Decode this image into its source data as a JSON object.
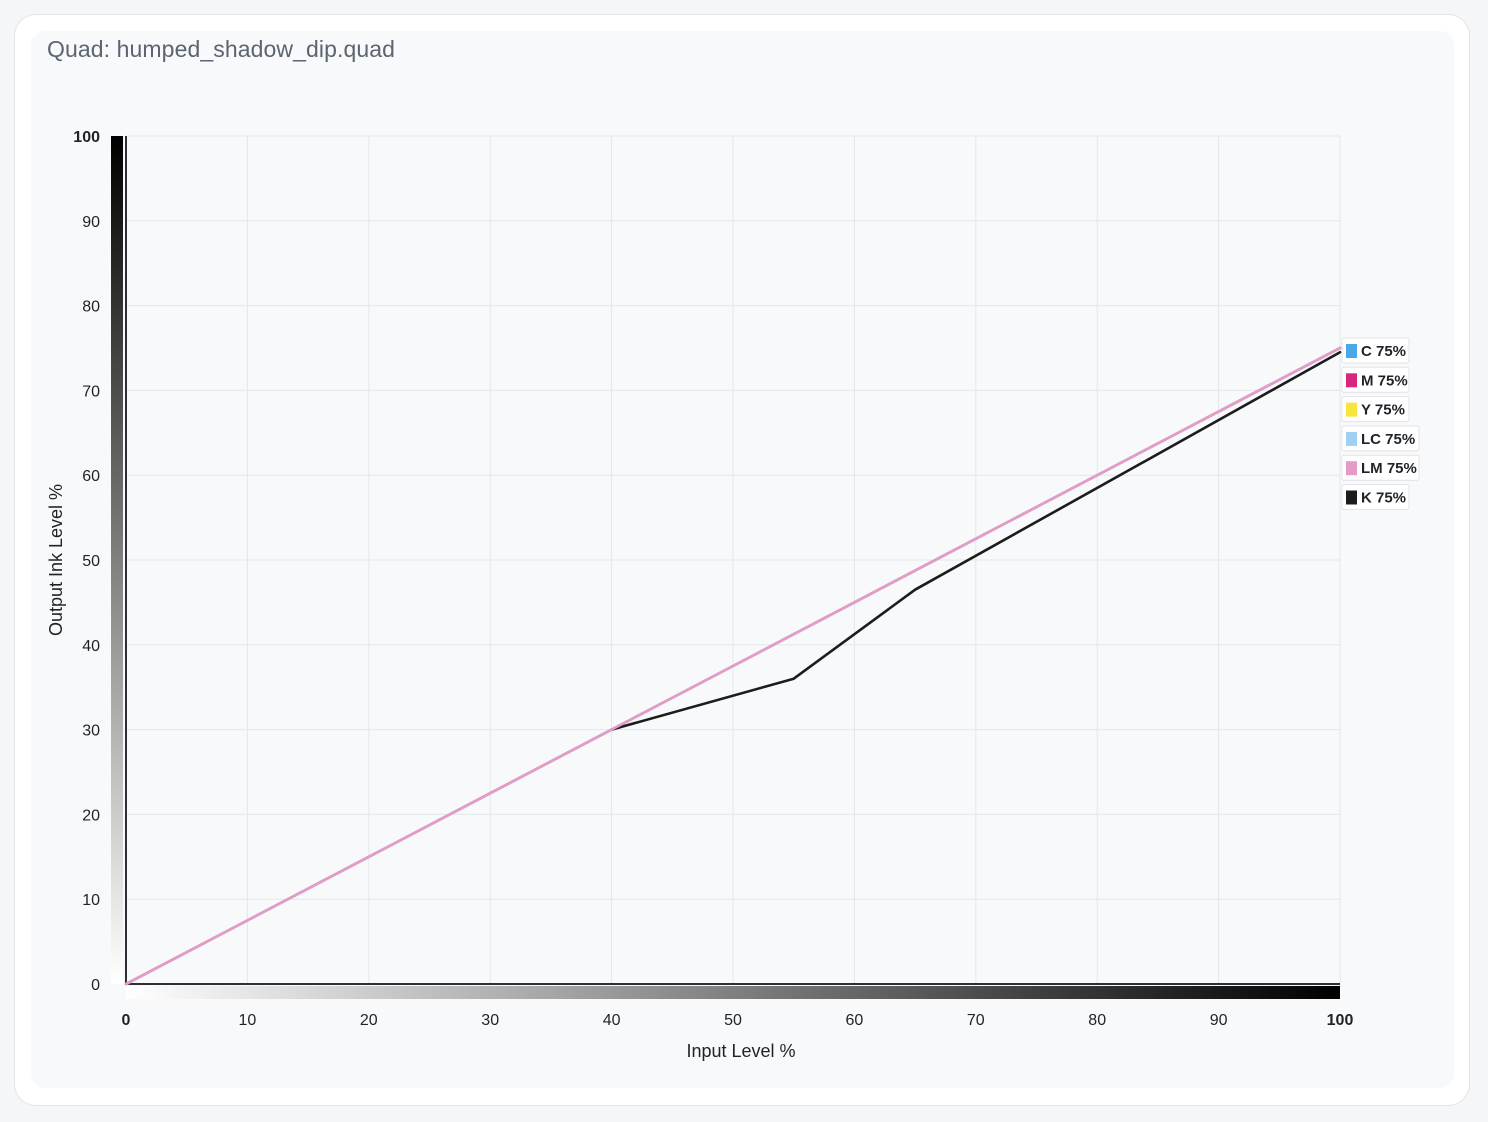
{
  "title": "Quad: humped_shadow_dip.quad",
  "chart_data": {
    "type": "line",
    "xlabel": "Input Level %",
    "ylabel": "Output Ink Level %",
    "xlim": [
      0,
      100
    ],
    "ylim": [
      0,
      100
    ],
    "x_ticks": [
      0,
      10,
      20,
      30,
      40,
      50,
      60,
      70,
      80,
      90,
      100
    ],
    "y_ticks": [
      0,
      10,
      20,
      30,
      40,
      50,
      60,
      70,
      80,
      90,
      100
    ],
    "grid": true,
    "legend_position": "right",
    "series": [
      {
        "name": "C 75%",
        "color": "#4aa8e8",
        "points": [
          [
            0,
            0
          ],
          [
            100,
            75
          ]
        ]
      },
      {
        "name": "M 75%",
        "color": "#d6267f",
        "points": [
          [
            0,
            0
          ],
          [
            100,
            75
          ]
        ]
      },
      {
        "name": "Y 75%",
        "color": "#f6e53a",
        "points": [
          [
            0,
            0
          ],
          [
            100,
            75
          ]
        ]
      },
      {
        "name": "LC 75%",
        "color": "#9fd0f4",
        "points": [
          [
            0,
            0
          ],
          [
            100,
            75
          ]
        ]
      },
      {
        "name": "K 75%",
        "color": "#1c1c1c",
        "points": [
          [
            40,
            30
          ],
          [
            55,
            36
          ],
          [
            65,
            46.5
          ],
          [
            100,
            74.5
          ]
        ]
      },
      {
        "name": "LM 75%",
        "color": "#e59ac8",
        "points": [
          [
            0,
            0
          ],
          [
            100,
            75
          ]
        ]
      }
    ],
    "legend_order": [
      "C 75%",
      "M 75%",
      "Y 75%",
      "LC 75%",
      "LM 75%",
      "K 75%"
    ]
  }
}
